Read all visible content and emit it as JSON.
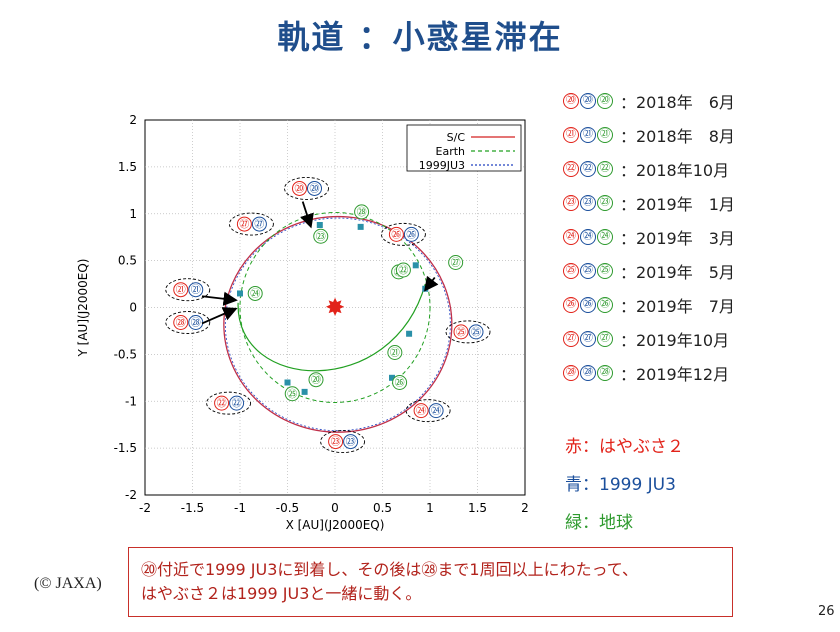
{
  "title": "軌道 ：小惑星滞在",
  "plot": {
    "x_axis_label": "X [AU](J2000EQ)",
    "y_axis_label": "Y [AU](J2000EQ)",
    "x_ticks": [
      "-2",
      "-1.5",
      "-1",
      "-0.5",
      "0",
      "0.5",
      "1",
      "1.5",
      "2"
    ],
    "y_ticks": [
      "2",
      "1.5",
      "1",
      "0.5",
      "0",
      "-0.5",
      "-1",
      "-1.5",
      "-2"
    ],
    "legend": [
      {
        "label": "S/C",
        "color": "#d42020",
        "dash": "none"
      },
      {
        "label": "Earth",
        "color": "#22a022",
        "dash": "4 3"
      },
      {
        "label": "1999JU3",
        "color": "#2040c0",
        "dash": "2 2"
      }
    ],
    "green_markers": [
      "㉘",
      "㉖",
      "㉗",
      "㉓",
      "㉒",
      "㉔",
      "㉑",
      "㉕",
      "⑳",
      "㉖"
    ],
    "callouts": [
      {
        "red": "⑳",
        "blue": "⑳"
      },
      {
        "red": "㉗",
        "blue": "㉗"
      },
      {
        "red": "㉖",
        "blue": "㉖"
      },
      {
        "red": "㉑",
        "blue": "㉑"
      },
      {
        "red": "㉘",
        "blue": "㉘"
      },
      {
        "red": "㉕",
        "blue": "㉕"
      },
      {
        "red": "㉒",
        "blue": "㉒"
      },
      {
        "red": "㉔",
        "blue": "㉔"
      },
      {
        "red": "㉓",
        "blue": "㉓"
      }
    ]
  },
  "schedule": [
    {
      "num": "⑳",
      "date": "：2018年　6月"
    },
    {
      "num": "㉑",
      "date": "：2018年　8月"
    },
    {
      "num": "㉒",
      "date": "：2018年10月"
    },
    {
      "num": "㉓",
      "date": "：2019年　1月"
    },
    {
      "num": "㉔",
      "date": "：2019年　3月"
    },
    {
      "num": "㉕",
      "date": "：2019年　5月"
    },
    {
      "num": "㉖",
      "date": "：2019年　7月"
    },
    {
      "num": "㉗",
      "date": "：2019年10月"
    },
    {
      "num": "㉘",
      "date": "：2019年12月"
    }
  ],
  "color_key": {
    "red": "赤：はやぶさ２",
    "blue": "青：1999 JU3",
    "green": "緑：地球"
  },
  "note": {
    "line1": "⑳付近で1999 JU3に到着し、その後は㉘まで1周回以上にわたって、",
    "line2": "はやぶさ２は1999 JU3と一緒に動く。"
  },
  "copyright": "(© JAXA)",
  "page_number": "26",
  "colors": {
    "title": "#1f4e8c",
    "spacecraft": "#d42020",
    "asteroid": "#1b4f9c",
    "earth": "#2e9a2e",
    "note_border": "#c8302a"
  }
}
